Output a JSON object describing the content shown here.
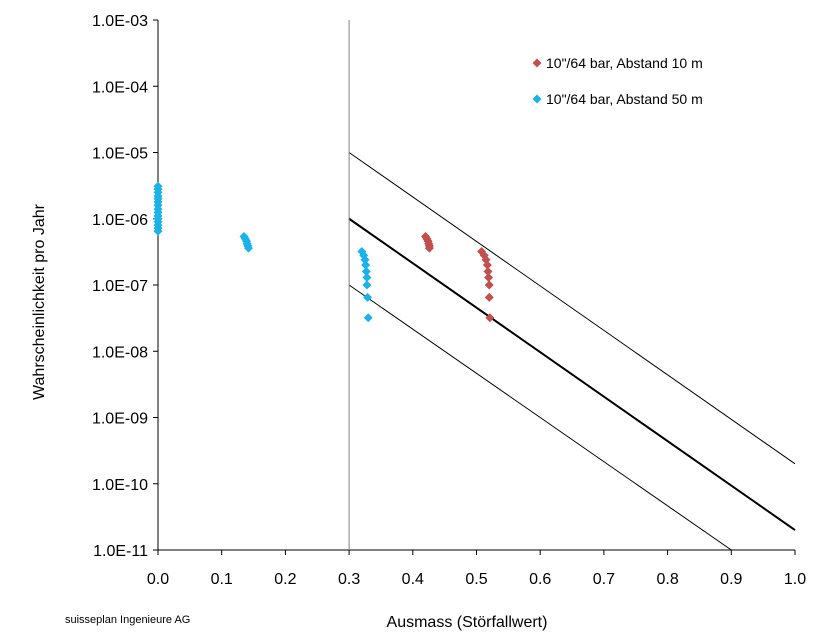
{
  "chart_data": {
    "type": "scatter",
    "title": "",
    "xlabel": "Ausmass (Störfallwert)",
    "ylabel": "Wahrscheinlichkeit pro Jahr",
    "xlim": [
      0.0,
      1.0
    ],
    "ylim": [
      1e-11,
      0.001
    ],
    "yscale": "log",
    "grid": false,
    "legend_position": "top-right",
    "x_tick_labels": [
      "0.0",
      "0.1",
      "0.2",
      "0.3",
      "0.4",
      "0.5",
      "0.6",
      "0.7",
      "0.8",
      "0.9",
      "1.0"
    ],
    "y_tick_labels": [
      "1.0E-11",
      "1.0E-10",
      "1.0E-09",
      "1.0E-08",
      "1.0E-07",
      "1.0E-06",
      "1.0E-05",
      "1.0E-04",
      "1.0E-03"
    ],
    "series": [
      {
        "name": "10\"/64 bar, Abstand 10 m",
        "color": "#c0504d",
        "marker": "diamond",
        "points": [
          [
            0.42,
            5.4e-07
          ],
          [
            0.422,
            5e-07
          ],
          [
            0.424,
            4.6e-07
          ],
          [
            0.425,
            4.2e-07
          ],
          [
            0.426,
            3.9e-07
          ],
          [
            0.426,
            3.6e-07
          ],
          [
            0.508,
            3.2e-07
          ],
          [
            0.512,
            2.8e-07
          ],
          [
            0.515,
            2.4e-07
          ],
          [
            0.517,
            2e-07
          ],
          [
            0.518,
            1.6e-07
          ],
          [
            0.519,
            1.3e-07
          ],
          [
            0.52,
            1e-07
          ],
          [
            0.52,
            6.5e-08
          ],
          [
            0.521,
            3.2e-08
          ]
        ]
      },
      {
        "name": "10\"/64 bar, Abstand 50 m",
        "color": "#1ab2e8",
        "marker": "diamond",
        "points": [
          [
            0.0,
            3.1e-06
          ],
          [
            0.0,
            2.8e-06
          ],
          [
            0.0,
            2.5e-06
          ],
          [
            0.0,
            2.2e-06
          ],
          [
            0.0,
            2e-06
          ],
          [
            0.0,
            1.8e-06
          ],
          [
            0.0,
            1.6e-06
          ],
          [
            0.0,
            1.4e-06
          ],
          [
            0.0,
            1.25e-06
          ],
          [
            0.0,
            1.1e-06
          ],
          [
            0.0,
            1e-06
          ],
          [
            0.0,
            9e-07
          ],
          [
            0.0,
            8e-07
          ],
          [
            0.0,
            7.2e-07
          ],
          [
            0.0,
            6.5e-07
          ],
          [
            0.135,
            5.4e-07
          ],
          [
            0.137,
            5e-07
          ],
          [
            0.139,
            4.6e-07
          ],
          [
            0.14,
            4.2e-07
          ],
          [
            0.141,
            3.9e-07
          ],
          [
            0.142,
            3.6e-07
          ],
          [
            0.32,
            3.2e-07
          ],
          [
            0.323,
            2.8e-07
          ],
          [
            0.325,
            2.4e-07
          ],
          [
            0.326,
            2e-07
          ],
          [
            0.327,
            1.6e-07
          ],
          [
            0.328,
            1.3e-07
          ],
          [
            0.328,
            1e-07
          ],
          [
            0.329,
            6.5e-08
          ],
          [
            0.33,
            3.2e-08
          ]
        ]
      }
    ],
    "reference_lines": [
      {
        "x": [
          0.3,
          1.0
        ],
        "y": [
          1e-05,
          2e-10
        ],
        "weight": "thin"
      },
      {
        "x": [
          0.3,
          1.0
        ],
        "y": [
          1e-06,
          2e-11
        ],
        "weight": "bold"
      },
      {
        "x": [
          0.3,
          0.9
        ],
        "y": [
          1e-07,
          1e-11
        ],
        "weight": "thin"
      },
      {
        "x": [
          0.3,
          0.3
        ],
        "y": [
          1e-11,
          0.001
        ],
        "weight": "thin",
        "color": "#808080"
      }
    ],
    "credit": "suisseplan Ingenieure AG"
  }
}
